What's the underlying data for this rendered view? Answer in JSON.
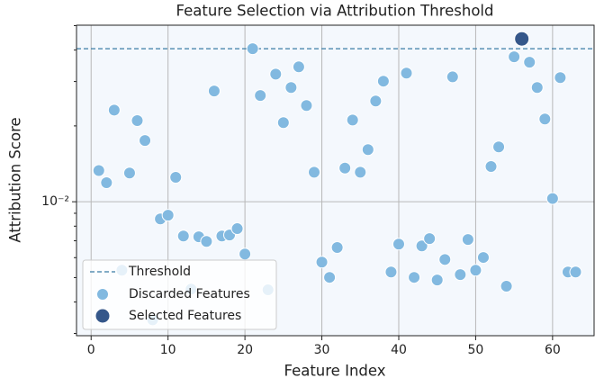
{
  "chart_data": {
    "type": "scatter",
    "title": "Feature Selection via Attribution Threshold",
    "xlabel": "Feature Index",
    "ylabel": "Attribution Score",
    "xlim": [
      -1.9,
      65.4
    ],
    "xticks": [
      0,
      10,
      20,
      30,
      40,
      50,
      60
    ],
    "ylim": [
      0.00294,
      0.0502
    ],
    "log_y": true,
    "yticks": [
      {
        "value": 0.01,
        "label": "10⁻²"
      }
    ],
    "yminorticks": [
      0.003,
      0.004,
      0.005,
      0.006,
      0.007,
      0.008,
      0.009,
      0.02,
      0.03,
      0.04,
      0.05
    ],
    "grid": true,
    "legend": "lower left",
    "threshold": {
      "name": "Threshold",
      "value": 0.0405,
      "color": "#3a7ca5"
    },
    "series": [
      {
        "name": "Discarded Features",
        "color": "#82b9e0",
        "x": [
          1,
          2,
          3,
          4,
          5,
          6,
          7,
          8,
          9,
          10,
          11,
          12,
          13,
          14,
          15,
          16,
          17,
          18,
          19,
          20,
          21,
          22,
          23,
          24,
          25,
          26,
          27,
          28,
          29,
          30,
          31,
          32,
          33,
          34,
          35,
          36,
          37,
          38,
          39,
          40,
          41,
          42,
          43,
          44,
          45,
          46,
          47,
          48,
          49,
          50,
          51,
          52,
          53,
          54,
          55,
          57,
          58,
          59,
          60,
          61,
          62,
          63
        ],
        "values": [
          0.0133,
          0.0119,
          0.0231,
          0.00535,
          0.013,
          0.021,
          0.0175,
          0.0034,
          0.00855,
          0.00884,
          0.0125,
          0.00731,
          0.0045,
          0.00726,
          0.00696,
          0.0275,
          0.00731,
          0.00738,
          0.00782,
          0.0062,
          0.0405,
          0.0264,
          0.00447,
          0.0321,
          0.0206,
          0.0284,
          0.0343,
          0.0241,
          0.0131,
          0.00576,
          0.00501,
          0.00658,
          0.0136,
          0.0211,
          0.0131,
          0.0161,
          0.0251,
          0.0301,
          0.00526,
          0.00679,
          0.0324,
          0.00501,
          0.00668,
          0.00714,
          0.00489,
          0.0059,
          0.0313,
          0.00514,
          0.00708,
          0.00535,
          0.00601,
          0.0138,
          0.0165,
          0.00462,
          0.0376,
          0.0358,
          0.0284,
          0.0213,
          0.0103,
          0.0311,
          0.00526,
          0.00526
        ]
      },
      {
        "name": "Selected Features",
        "color": "#35578a",
        "x": [
          56
        ],
        "values": [
          0.0443
        ]
      }
    ]
  }
}
